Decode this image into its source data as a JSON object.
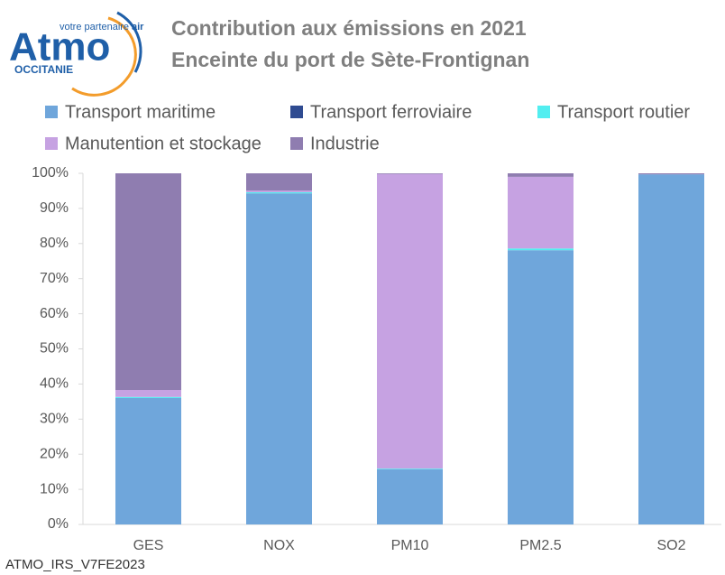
{
  "logo": {
    "name": "Atmo",
    "tagline": "votre partenaire",
    "tagline_bold": "air",
    "region": "OCCITANIE"
  },
  "footnote": "ATMO_IRS_V7FE2023",
  "chart_data": {
    "type": "stacked_bar",
    "title": "Contribution aux émissions en 2021",
    "subtitle": "Enceinte du port de Sète-Frontignan",
    "categories": [
      "GES",
      "NOX",
      "PM10",
      "PM2.5",
      "SO2"
    ],
    "series": [
      {
        "name": "Transport maritime",
        "color": "#6fa6db",
        "values": [
          36,
          94.3,
          15.7,
          78.1,
          99.7
        ]
      },
      {
        "name": "Transport ferroviaire",
        "color": "#2f4b91",
        "values": [
          0,
          0,
          0,
          0,
          0
        ]
      },
      {
        "name": "Transport routier",
        "color": "#52eef0",
        "values": [
          0.3,
          0.3,
          0.2,
          0.5,
          0
        ]
      },
      {
        "name": "Manutention et stockage",
        "color": "#c6a2e2",
        "values": [
          2,
          0.5,
          83.9,
          20.4,
          0
        ]
      },
      {
        "name": "Industrie",
        "color": "#8f7db0",
        "values": [
          61.7,
          4.9,
          0.2,
          1,
          0.3
        ]
      }
    ],
    "ylim": [
      0,
      100
    ],
    "yticks": [
      {
        "value": 0,
        "label": "0%"
      },
      {
        "value": 10,
        "label": "10%"
      },
      {
        "value": 20,
        "label": "20%"
      },
      {
        "value": 30,
        "label": "30%"
      },
      {
        "value": 40,
        "label": "40%"
      },
      {
        "value": 50,
        "label": "50%"
      },
      {
        "value": 60,
        "label": "60%"
      },
      {
        "value": 70,
        "label": "70%"
      },
      {
        "value": 80,
        "label": "80%"
      },
      {
        "value": 90,
        "label": "90%"
      },
      {
        "value": 100,
        "label": "100%"
      }
    ],
    "legend": "top"
  }
}
